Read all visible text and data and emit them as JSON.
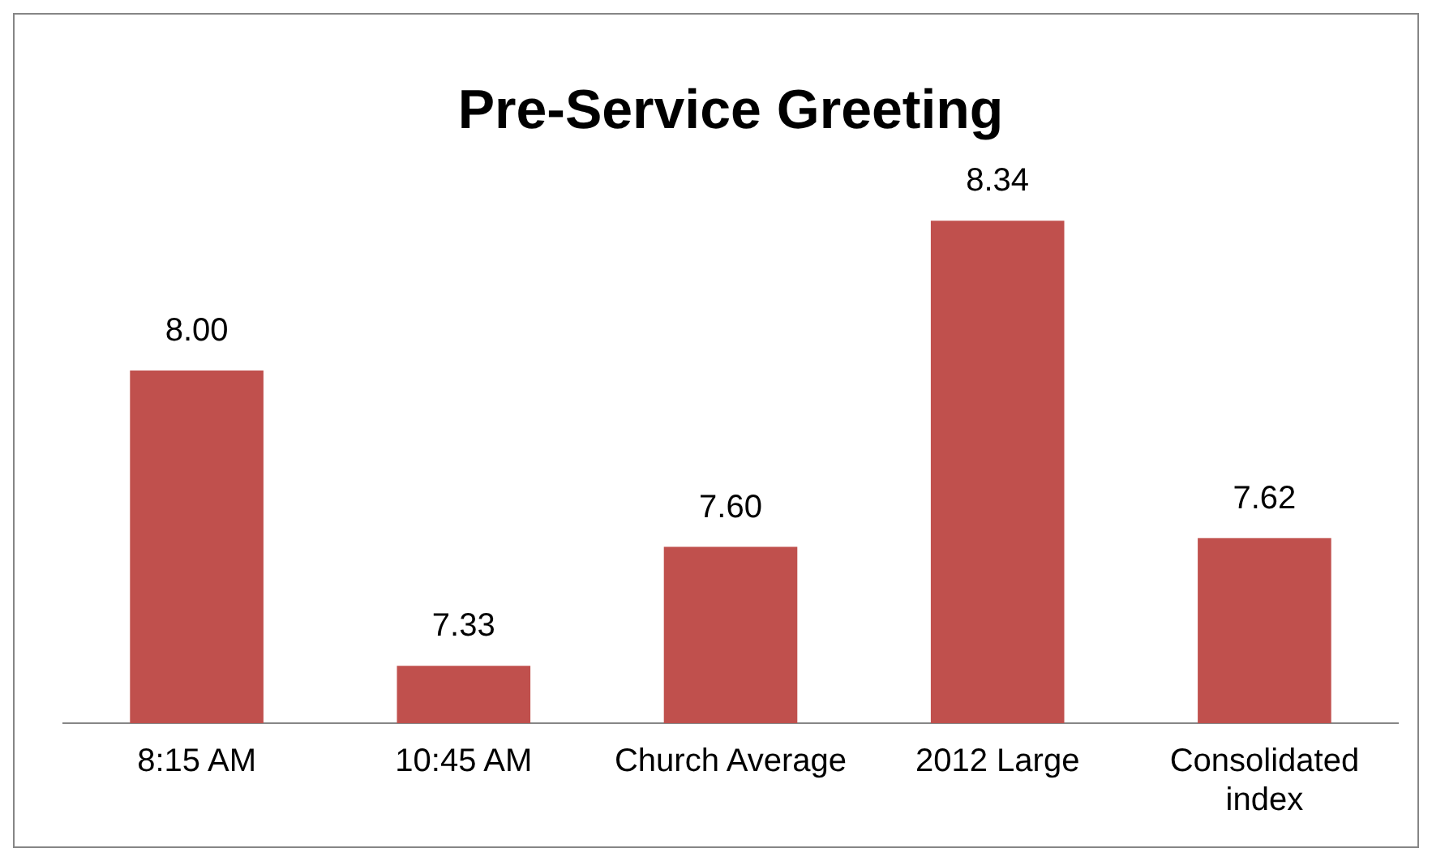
{
  "chart_data": {
    "type": "bar",
    "title": "Pre-Service Greeting",
    "categories": [
      "8:15 AM",
      "10:45 AM",
      "Church Average",
      "2012 Large",
      "Consolidated index"
    ],
    "values": [
      8.0,
      7.33,
      7.6,
      8.34,
      7.62
    ],
    "value_labels": [
      "8.00",
      "7.33",
      "7.60",
      "8.34",
      "7.62"
    ],
    "color": "#c0504d",
    "tick_labels": "x",
    "grid": false,
    "legend": false
  }
}
